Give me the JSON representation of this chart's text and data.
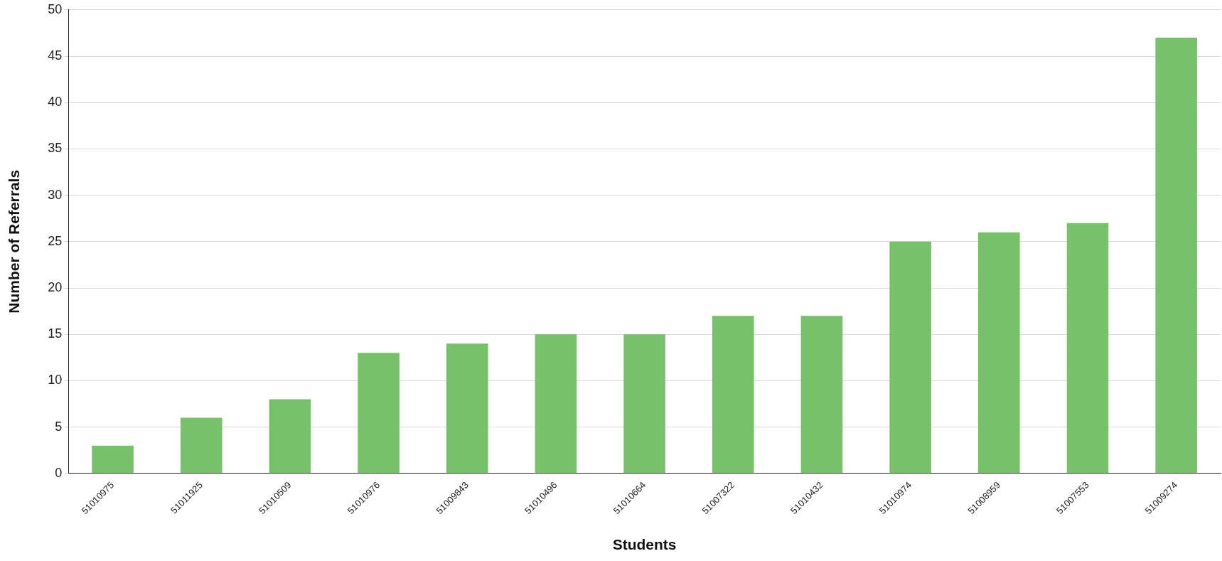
{
  "chart_data": {
    "type": "bar",
    "xlabel": "Students",
    "ylabel": "Number of Referrals",
    "categories": [
      "51010975",
      "51011925",
      "51010509",
      "51010976",
      "51009843",
      "51010496",
      "51010664",
      "51007322",
      "51010432",
      "51010974",
      "51008959",
      "51007553",
      "51009274"
    ],
    "values": [
      3,
      6,
      8,
      13,
      14,
      15,
      15,
      17,
      17,
      25,
      26,
      27,
      47
    ],
    "color": "#77c16a",
    "ylim": [
      0,
      50
    ],
    "yticks": [
      0,
      5,
      10,
      15,
      20,
      25,
      30,
      35,
      40,
      45,
      50
    ],
    "grid": "y",
    "legend": false
  }
}
